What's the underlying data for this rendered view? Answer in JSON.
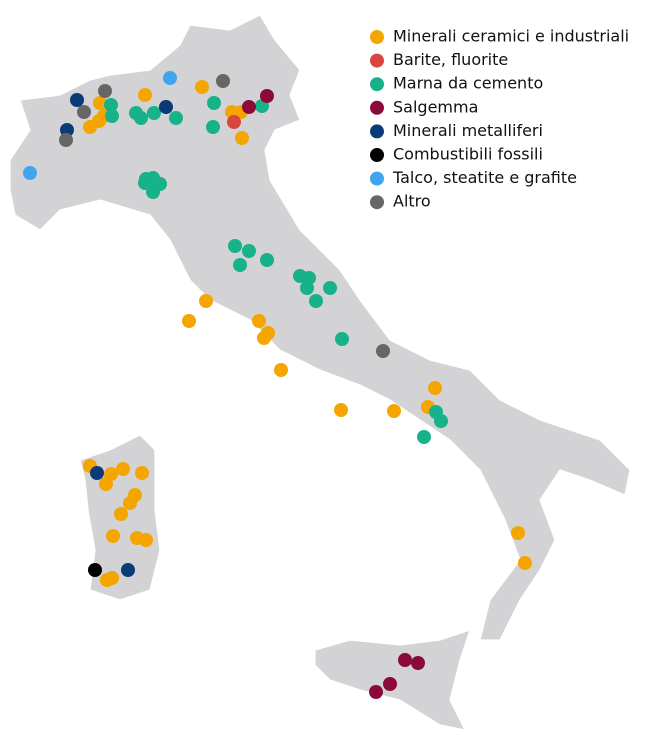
{
  "legend": {
    "items": [
      {
        "label": "Minerali ceramici e industriali",
        "color": "#f5a500"
      },
      {
        "label": "Barite, fluorite",
        "color": "#d9453f"
      },
      {
        "label": "Marna da cemento",
        "color": "#17b18a"
      },
      {
        "label": "Salgemma",
        "color": "#8b0a3a"
      },
      {
        "label": "Minerali metalliferi",
        "color": "#0b3a78"
      },
      {
        "label": "Combustibili fossili",
        "color": "#000000"
      },
      {
        "label": "Talco, steatite e grafite",
        "color": "#3fa6ee"
      },
      {
        "label": "Altro",
        "color": "#666666"
      }
    ]
  }
}
